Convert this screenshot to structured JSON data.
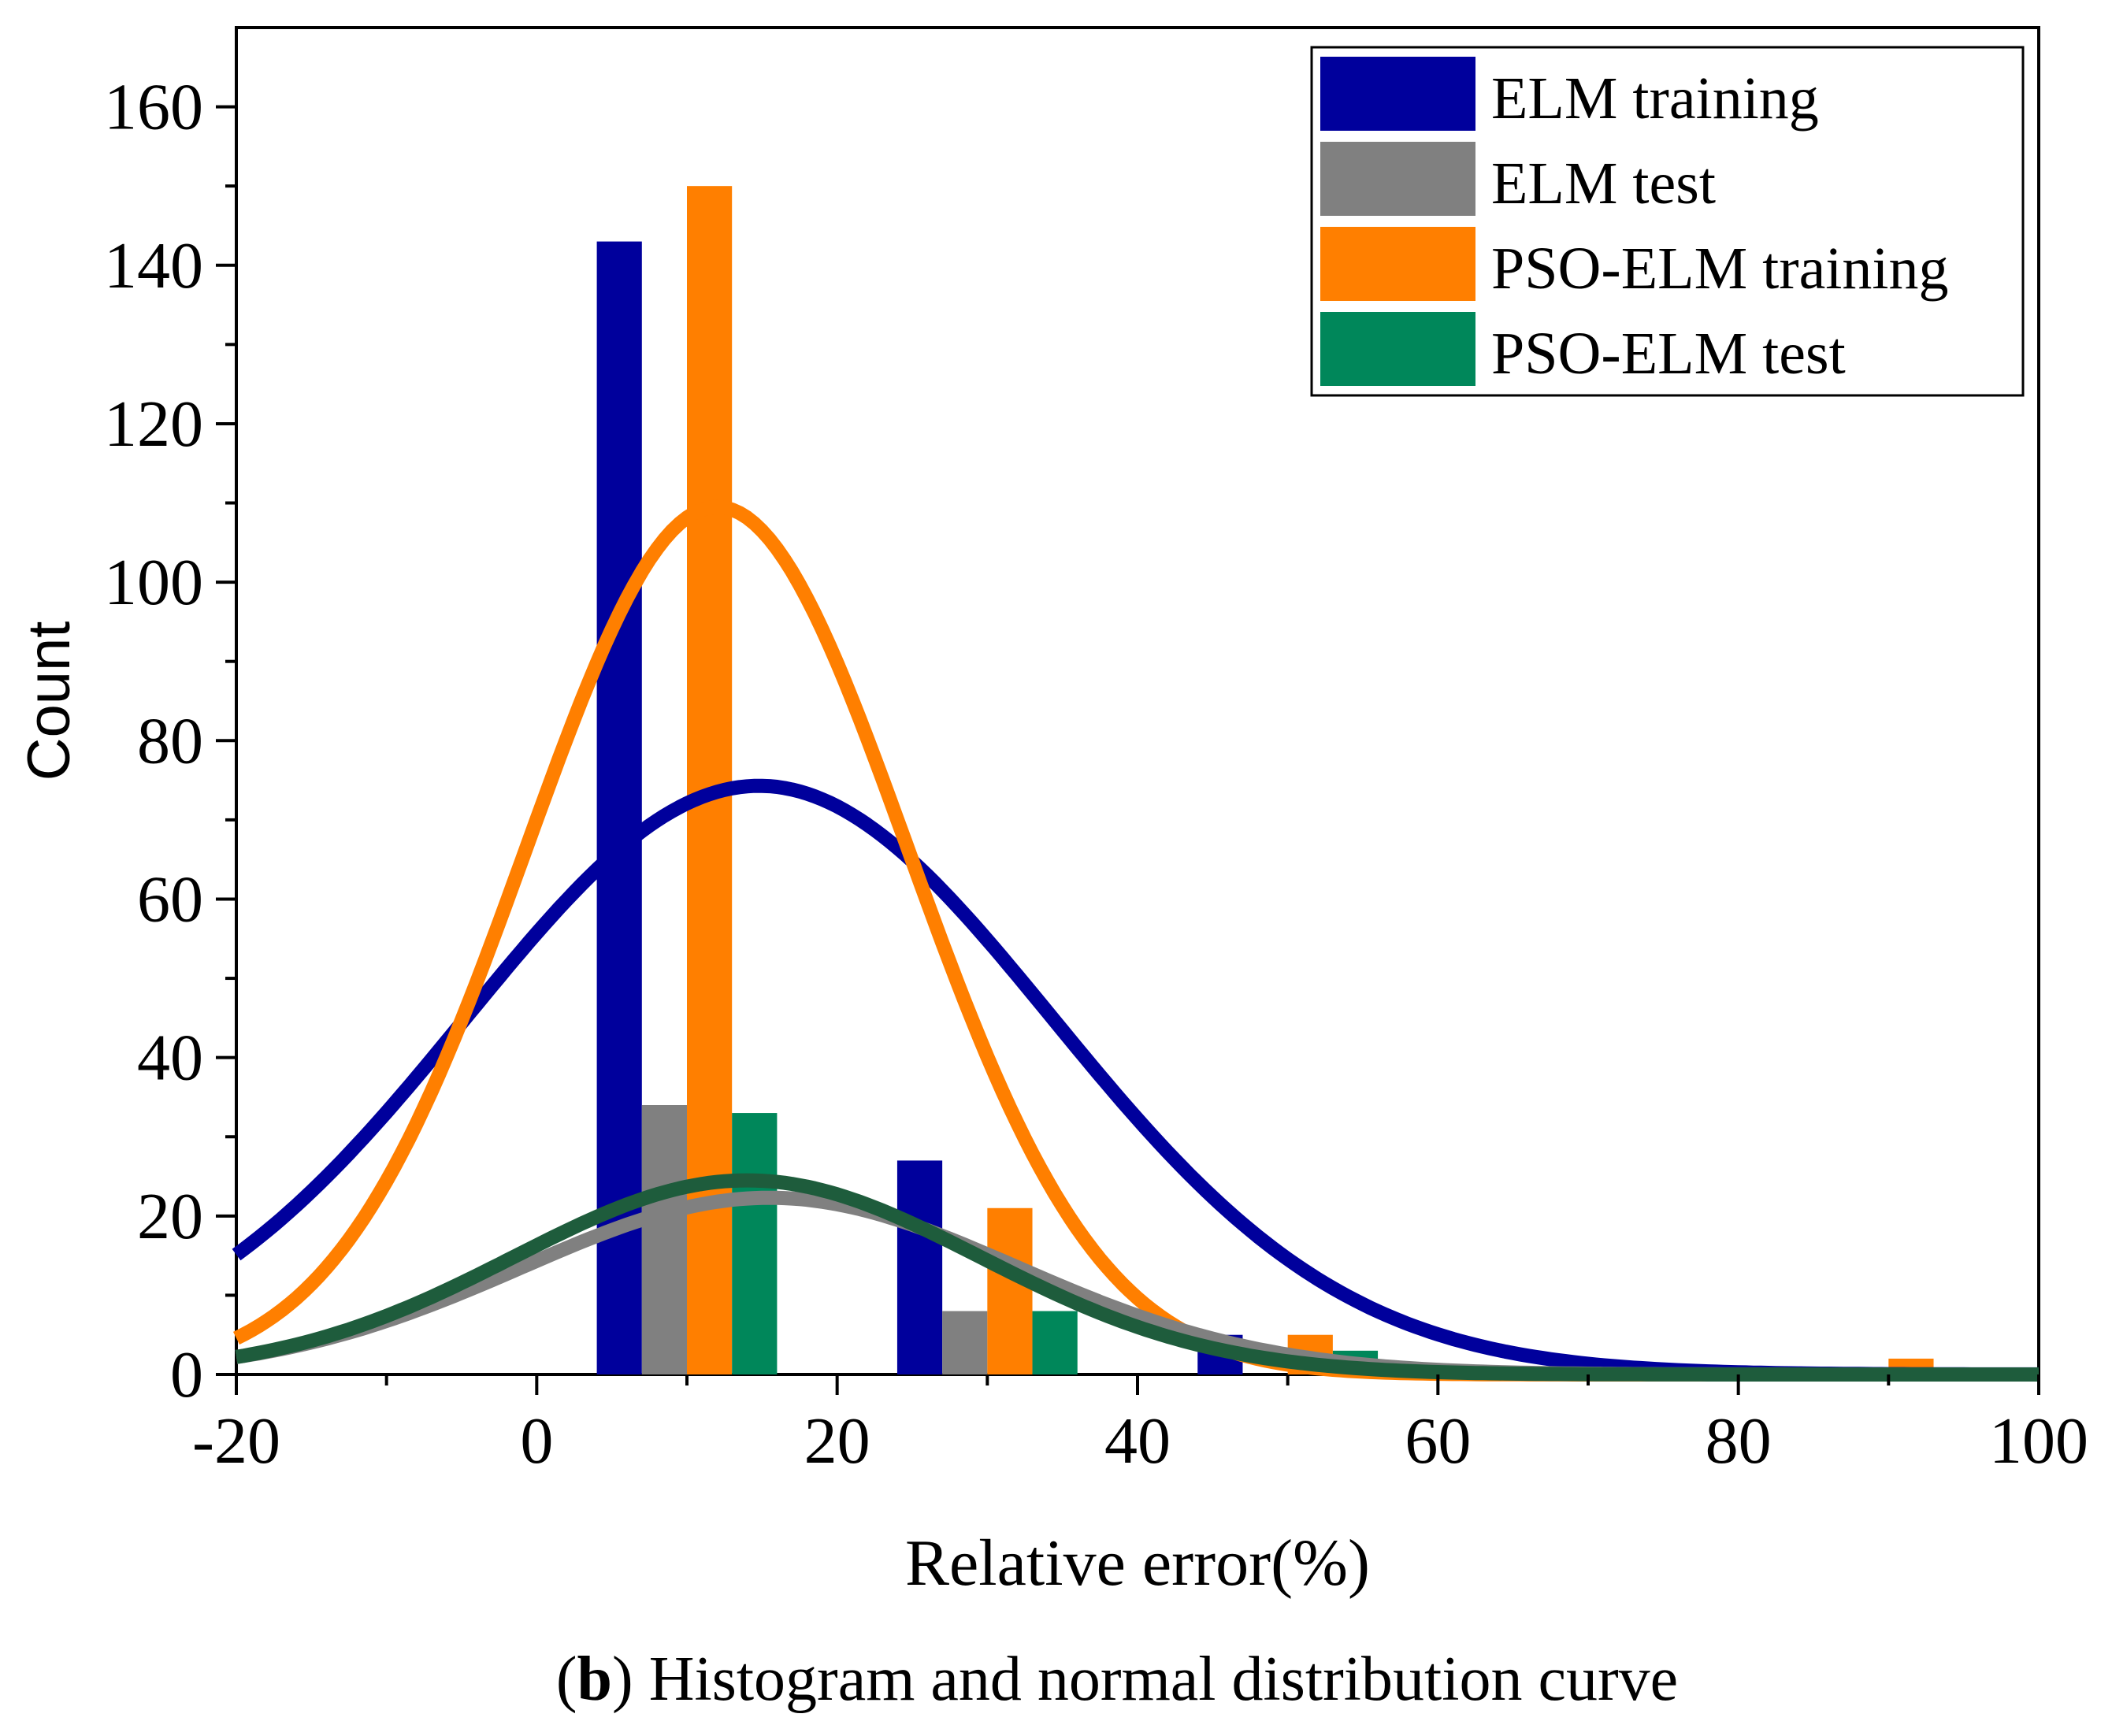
{
  "chart_data": {
    "type": "bar",
    "xlabel": "Relative error(%)",
    "ylabel": "Count",
    "xlim": [
      -20,
      100
    ],
    "ylim": [
      0,
      170
    ],
    "x_ticks": [
      -20,
      0,
      20,
      40,
      60,
      80,
      100
    ],
    "y_ticks": [
      0,
      20,
      40,
      60,
      80,
      100,
      120,
      140,
      160
    ],
    "bin_centers": [
      10,
      30,
      50,
      70,
      90
    ],
    "bin_width": 20,
    "series": [
      {
        "name": "ELM training",
        "color": "#00009c",
        "values": [
          143,
          27,
          5,
          0,
          0
        ]
      },
      {
        "name": "ELM test",
        "color": "#808080",
        "values": [
          34,
          8,
          0,
          0,
          0
        ]
      },
      {
        "name": "PSO-ELM training",
        "color": "#ff7f00",
        "values": [
          150,
          21,
          5,
          0,
          2
        ]
      },
      {
        "name": "PSO-ELM test",
        "color": "#00875a",
        "values": [
          33,
          8,
          3,
          0,
          0
        ]
      }
    ],
    "curves": [
      {
        "name": "ELM training normal fit",
        "color": "#00009c",
        "mean": 14.8,
        "sd": 19.5,
        "peak": 74.3
      },
      {
        "name": "PSO-ELM training normal fit",
        "color": "#ff7f00",
        "mean": 12.0,
        "sd": 12.7,
        "peak": 109.5
      },
      {
        "name": "ELM test normal fit",
        "color": "#808080",
        "mean": 15.5,
        "sd": 16.5,
        "peak": 22.3
      },
      {
        "name": "PSO-ELM test normal fit",
        "color": "#1e5c3c",
        "mean": 14.0,
        "sd": 15.5,
        "peak": 24.5
      }
    ],
    "legend_position": "top-right"
  },
  "caption": {
    "letter": "b",
    "text": "Histogram and normal distribution curve"
  }
}
